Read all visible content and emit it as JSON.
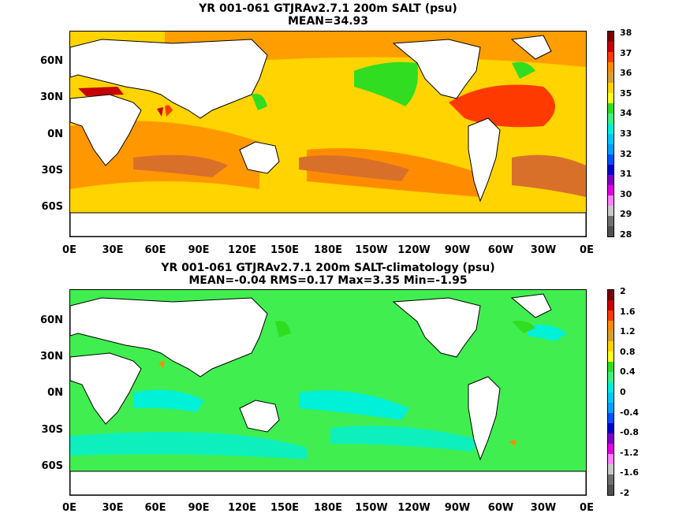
{
  "panels": [
    {
      "title_line1": "YR 001-061 GTJRAv2.7.1 200m SALT (psu)",
      "title_line2": "MEAN=34.93",
      "ocean_color": "#ffd400",
      "colorbar": {
        "labels": [
          "38",
          "37",
          "36",
          "35",
          "34",
          "33",
          "32",
          "31",
          "30",
          "29",
          "28"
        ],
        "colors": [
          "#7a0000",
          "#c80000",
          "#ff3a00",
          "#ff8c00",
          "#d8a030",
          "#ffd400",
          "#ffff20",
          "#30dd20",
          "#40f080",
          "#00f0d8",
          "#00c8ff",
          "#00a0ff",
          "#0050ff",
          "#0000c8",
          "#8000c8",
          "#e000e0",
          "#ff80ff",
          "#c8c8c8",
          "#707070",
          "#505050"
        ]
      }
    },
    {
      "title_line1": "YR 001-061 GTJRAv2.7.1 200m SALT-climatology (psu)",
      "title_line2": "MEAN=-0.04   RMS=0.17   Max=3.35   Min=-1.95",
      "ocean_color": "#40ee50",
      "colorbar": {
        "labels": [
          "2",
          "1.6",
          "1.2",
          "0.8",
          "0.4",
          "0",
          "-0.4",
          "-0.8",
          "-1.2",
          "-1.6",
          "-2"
        ],
        "colors": [
          "#7a0000",
          "#c80000",
          "#ff3a00",
          "#ff8c00",
          "#d8a030",
          "#ffd400",
          "#ffff20",
          "#30dd20",
          "#40f080",
          "#00f0d8",
          "#00c8ff",
          "#00a0ff",
          "#0050ff",
          "#0000c8",
          "#8000c8",
          "#e000e0",
          "#ff80ff",
          "#c8c8c8",
          "#707070",
          "#505050"
        ]
      }
    }
  ],
  "lat_labels": [
    "60N",
    "30N",
    "0N",
    "30S",
    "60S"
  ],
  "lon_labels": [
    "0E",
    "30E",
    "60E",
    "90E",
    "120E",
    "150E",
    "180E",
    "150W",
    "120W",
    "90W",
    "60W",
    "30W",
    "0E"
  ]
}
